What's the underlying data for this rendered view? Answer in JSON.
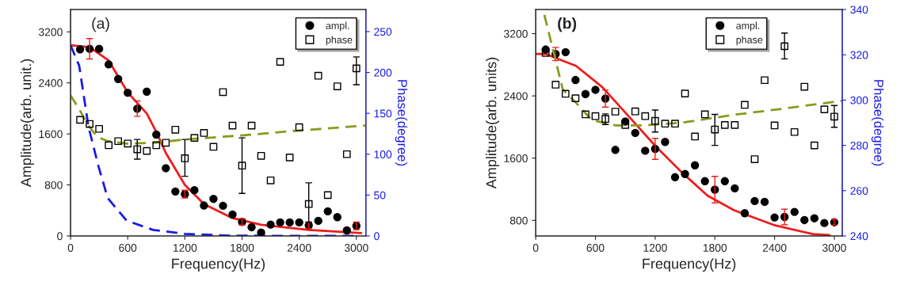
{
  "chart_data": [
    {
      "type": "scatter",
      "xlabel": "Frequency(Hz)",
      "ylabel": "Amplitude(arb. unit.)",
      "y2label": "Phase(degree)",
      "xlim": [
        0,
        3100
      ],
      "xticks": [
        0,
        600,
        1200,
        1800,
        2400,
        3000
      ],
      "ylim": [
        0,
        3550
      ],
      "yticks": [
        0,
        800,
        1600,
        2400,
        3200
      ],
      "y2lim": [
        0,
        277
      ],
      "y2ticks": [
        0,
        50,
        100,
        150,
        200,
        250
      ],
      "legend": "top right",
      "grid": false,
      "annotations": [
        "(a)"
      ],
      "series": [
        {
          "name": "ampl.",
          "marker": "circle",
          "color": "#000000",
          "x": [
            100,
            200,
            300,
            400,
            500,
            600,
            700,
            800,
            900,
            1000,
            1100,
            1200,
            1300,
            1400,
            1500,
            1600,
            1700,
            1800,
            1900,
            2000,
            2100,
            2200,
            2300,
            2400,
            2500,
            2600,
            2700,
            2800,
            2900,
            3000
          ],
          "values": [
            2926,
            2934,
            2934,
            2689,
            2461,
            2245,
            1996,
            2262,
            1589,
            1062,
            697,
            656,
            718,
            477,
            581,
            473,
            336,
            220,
            137,
            54,
            178,
            212,
            212,
            212,
            166,
            237,
            386,
            295,
            87,
            158
          ],
          "errors": [
            null,
            160,
            null,
            null,
            null,
            null,
            120,
            null,
            null,
            null,
            null,
            60,
            null,
            null,
            null,
            null,
            null,
            50,
            null,
            null,
            null,
            null,
            null,
            null,
            50,
            null,
            null,
            null,
            null,
            60
          ]
        },
        {
          "name": "phase",
          "type": "scatter",
          "marker": "square",
          "axis": "y2",
          "color": "#000000",
          "x": [
            100,
            200,
            300,
            400,
            500,
            600,
            700,
            800,
            900,
            1000,
            1100,
            1200,
            1300,
            1400,
            1500,
            1600,
            1700,
            1800,
            1900,
            2000,
            2100,
            2200,
            2300,
            2400,
            2500,
            2600,
            2700,
            2800,
            2900,
            3000
          ],
          "values": [
            142,
            137,
            131,
            111,
            116,
            113,
            106,
            104,
            111,
            114,
            130,
            95,
            120,
            126,
            109,
            176,
            135,
            86,
            135,
            98,
            68,
            213,
            96,
            133,
            39,
            196,
            50,
            183,
            100,
            205
          ],
          "errors": [
            null,
            null,
            null,
            null,
            null,
            null,
            [
              94,
              118
            ],
            null,
            null,
            null,
            null,
            [
              73,
              118
            ],
            null,
            null,
            null,
            null,
            null,
            [
              52,
              120
            ],
            null,
            null,
            null,
            null,
            null,
            null,
            [
              17,
              65
            ],
            null,
            null,
            null,
            null,
            [
              185,
              219
            ]
          ]
        },
        {
          "type": "line",
          "line_style": "solid",
          "color": "#ee1c1c",
          "x": [
            0,
            200,
            400,
            600,
            800,
            900,
            1000,
            1200,
            1400,
            1700,
            2000,
            2500,
            3050
          ],
          "values": [
            2990,
            2960,
            2750,
            2250,
            1920,
            1630,
            1300,
            800,
            500,
            280,
            175,
            95,
            45
          ]
        },
        {
          "type": "line",
          "line_style": "dashed",
          "color": "#1a1ae6",
          "x": [
            0,
            91,
            188,
            293,
            390,
            588,
            865,
            1196,
            1693,
            3000
          ],
          "values": [
            2990,
            2668,
            1714,
            1091,
            593,
            241,
            95,
            33,
            4,
            0
          ]
        },
        {
          "type": "line",
          "line_style": "dashed",
          "axis": "y2",
          "color": "#8c9a1c",
          "x": [
            0,
            91,
            188,
            284,
            390,
            588,
            892,
            1196,
            1796,
            2398,
            3094
          ],
          "values": [
            172,
            155,
            135,
            121,
            116,
            113,
            114,
            118,
            123,
            129,
            135
          ]
        }
      ]
    },
    {
      "type": "scatter",
      "xlabel": "Frequency(Hz)",
      "ylabel": "Amplitude(arb. units)",
      "y2label": "Phase(degree)",
      "xlim": [
        0,
        3080
      ],
      "xticks": [
        0,
        600,
        1200,
        1800,
        2400,
        3000
      ],
      "ylim": [
        600,
        3510
      ],
      "yticks": [
        800,
        1600,
        2400,
        3200
      ],
      "y2lim": [
        240,
        340
      ],
      "y2ticks": [
        240,
        260,
        280,
        300,
        320,
        340
      ],
      "legend": "top right",
      "grid": false,
      "annotations": [
        "(b)"
      ],
      "series": [
        {
          "name": "ampl.",
          "marker": "circle",
          "color": "#000000",
          "x": [
            100,
            200,
            300,
            400,
            500,
            600,
            700,
            800,
            900,
            1000,
            1100,
            1200,
            1300,
            1400,
            1500,
            1600,
            1700,
            1800,
            1900,
            2000,
            2100,
            2200,
            2300,
            2400,
            2500,
            2600,
            2700,
            2800,
            2900,
            3000
          ],
          "values": [
            2996,
            2938,
            2962,
            2604,
            2424,
            2478,
            2366,
            1706,
            2070,
            1924,
            1695,
            1719,
            1808,
            1355,
            1396,
            1508,
            1304,
            1195,
            1304,
            1212,
            892,
            1049,
            1038,
            838,
            844,
            909,
            804,
            827,
            766,
            776
          ],
          "errors": [
            null,
            85,
            null,
            null,
            null,
            null,
            110,
            null,
            null,
            null,
            null,
            135,
            null,
            null,
            null,
            null,
            null,
            170,
            null,
            null,
            null,
            null,
            null,
            null,
            100,
            null,
            null,
            null,
            null,
            35
          ]
        },
        {
          "name": "phase",
          "type": "scatter",
          "marker": "square",
          "axis": "y2",
          "color": "#000000",
          "x": [
            100,
            200,
            300,
            400,
            500,
            600,
            700,
            800,
            900,
            1000,
            1100,
            1200,
            1300,
            1400,
            1500,
            1600,
            1700,
            1800,
            1900,
            2000,
            2100,
            2200,
            2300,
            2400,
            2500,
            2600,
            2700,
            2800,
            2900,
            3000
          ],
          "values": [
            320.8,
            306.8,
            302.8,
            300.8,
            293.7,
            292.9,
            291.7,
            294.9,
            289.0,
            295.0,
            292.9,
            290.8,
            289.6,
            289.6,
            302.9,
            283.9,
            293.7,
            287.0,
            289.0,
            289.0,
            297.9,
            273.9,
            308.8,
            288.8,
            323.8,
            285.9,
            305.9,
            280.0,
            295.9,
            292.7
          ],
          "errors": [
            null,
            null,
            null,
            null,
            null,
            null,
            [
              289.2,
              293.9
            ],
            null,
            null,
            null,
            null,
            [
              285.9,
              295.6
            ],
            null,
            null,
            null,
            null,
            null,
            [
              280,
              293.7
            ],
            null,
            null,
            null,
            null,
            null,
            null,
            [
              318.2,
              329.6
            ],
            null,
            null,
            null,
            null,
            [
              288,
              297.6
            ]
          ]
        },
        {
          "type": "line",
          "line_style": "solid",
          "color": "#ee1c1c",
          "x": [
            0,
            100,
            405,
            670,
            934,
            1198,
            1463,
            1728,
            1992,
            2389,
            2786,
            2950
          ],
          "values": [
            2940,
            2938,
            2785,
            2512,
            2138,
            1763,
            1423,
            1117,
            930,
            742,
            623,
            610
          ]
        },
        {
          "type": "line",
          "line_style": "dashed",
          "axis": "y2",
          "color": "#8c9a1c",
          "x": [
            87,
            140,
            272,
            405,
            563,
            802,
            1066,
            1463,
            1992,
            2521,
            3077
          ],
          "values": [
            337.6,
            328.2,
            304.7,
            298.8,
            291.2,
            288.8,
            288.8,
            290.0,
            293.5,
            296.4,
            299.7
          ]
        }
      ]
    }
  ]
}
